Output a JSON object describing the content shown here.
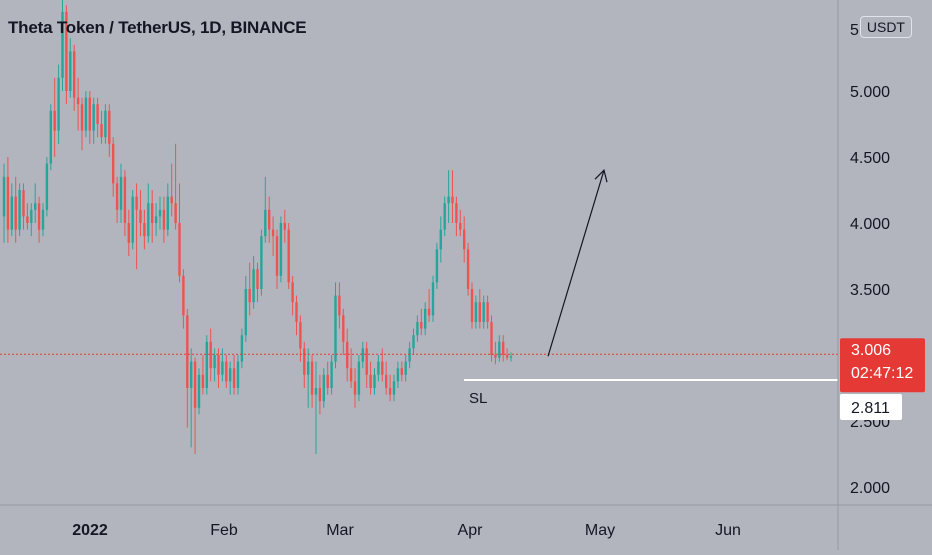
{
  "chart_title": "Theta Token / TetherUS, 1D, BINANCE",
  "currency": "USDT",
  "colors": {
    "background": "#b2b5be",
    "up": "#26a69a",
    "down": "#ef5350",
    "price_line": "#e53935",
    "sl_line": "#ffffff",
    "axis_text": "#131722"
  },
  "chart_data": {
    "type": "candlestick",
    "title": "Theta Token / TetherUS, 1D, BINANCE",
    "ylim": [
      1.8,
      5.45
    ],
    "y_ticks": [
      "5.000",
      "4.500",
      "4.000",
      "3.500",
      "3.000",
      "2.500",
      "2.000"
    ],
    "x_tick_labels": [
      "2022",
      "Feb",
      "Mar",
      "Apr",
      "May",
      "Jun"
    ],
    "current_price": "3.006",
    "countdown": "02:47:12",
    "sl_price": "2.811",
    "annotations": {
      "sl_label": "SL",
      "arrow": {
        "from_price": 2.99,
        "to_price": 4.4
      }
    },
    "legend_pos": "top-left",
    "grid": false,
    "candles": [
      {
        "o": 4.05,
        "h": 4.45,
        "c": 4.35,
        "l": 3.85
      },
      {
        "o": 4.35,
        "h": 4.5,
        "c": 3.95,
        "l": 3.85
      },
      {
        "o": 3.95,
        "h": 4.3,
        "c": 4.2,
        "l": 3.9
      },
      {
        "o": 4.2,
        "h": 4.35,
        "c": 3.95,
        "l": 3.85
      },
      {
        "o": 3.95,
        "h": 4.3,
        "c": 4.25,
        "l": 3.9
      },
      {
        "o": 4.25,
        "h": 4.3,
        "c": 4.05,
        "l": 3.95
      },
      {
        "o": 4.05,
        "h": 4.15,
        "c": 4.0,
        "l": 3.95
      },
      {
        "o": 4.0,
        "h": 4.15,
        "c": 4.1,
        "l": 3.9
      },
      {
        "o": 4.1,
        "h": 4.3,
        "c": 4.15,
        "l": 4.0
      },
      {
        "o": 4.15,
        "h": 4.2,
        "c": 3.95,
        "l": 3.85
      },
      {
        "o": 3.95,
        "h": 4.15,
        "c": 4.1,
        "l": 3.9
      },
      {
        "o": 4.1,
        "h": 4.5,
        "c": 4.45,
        "l": 4.05
      },
      {
        "o": 4.45,
        "h": 4.9,
        "c": 4.85,
        "l": 4.4
      },
      {
        "o": 4.85,
        "h": 5.1,
        "c": 4.7,
        "l": 4.5
      },
      {
        "o": 4.7,
        "h": 5.2,
        "c": 5.1,
        "l": 4.6
      },
      {
        "o": 5.1,
        "h": 5.7,
        "c": 5.6,
        "l": 5.0
      },
      {
        "o": 5.6,
        "h": 5.65,
        "c": 5.0,
        "l": 4.9
      },
      {
        "o": 5.0,
        "h": 5.4,
        "c": 5.3,
        "l": 4.95
      },
      {
        "o": 5.3,
        "h": 5.35,
        "c": 4.95,
        "l": 4.85
      },
      {
        "o": 4.95,
        "h": 5.1,
        "c": 4.9,
        "l": 4.7
      },
      {
        "o": 4.9,
        "h": 4.95,
        "c": 4.7,
        "l": 4.55
      },
      {
        "o": 4.7,
        "h": 5.0,
        "c": 4.95,
        "l": 4.65
      },
      {
        "o": 4.95,
        "h": 5.0,
        "c": 4.7,
        "l": 4.6
      },
      {
        "o": 4.7,
        "h": 4.95,
        "c": 4.9,
        "l": 4.6
      },
      {
        "o": 4.9,
        "h": 4.95,
        "c": 4.75,
        "l": 4.65
      },
      {
        "o": 4.75,
        "h": 4.85,
        "c": 4.65,
        "l": 4.6
      },
      {
        "o": 4.65,
        "h": 4.9,
        "c": 4.85,
        "l": 4.6
      },
      {
        "o": 4.85,
        "h": 4.9,
        "c": 4.6,
        "l": 4.5
      },
      {
        "o": 4.6,
        "h": 4.65,
        "c": 4.3,
        "l": 4.2
      },
      {
        "o": 4.3,
        "h": 4.35,
        "c": 4.1,
        "l": 4.0
      },
      {
        "o": 4.1,
        "h": 4.45,
        "c": 4.35,
        "l": 4.0
      },
      {
        "o": 4.35,
        "h": 4.4,
        "c": 4.0,
        "l": 3.9
      },
      {
        "o": 4.0,
        "h": 4.1,
        "c": 3.85,
        "l": 3.75
      },
      {
        "o": 3.85,
        "h": 4.25,
        "c": 4.2,
        "l": 3.8
      },
      {
        "o": 4.2,
        "h": 4.3,
        "c": 4.1,
        "l": 3.65
      },
      {
        "o": 4.1,
        "h": 4.25,
        "c": 4.0,
        "l": 3.9
      },
      {
        "o": 4.0,
        "h": 4.1,
        "c": 3.9,
        "l": 3.8
      },
      {
        "o": 3.9,
        "h": 4.3,
        "c": 4.15,
        "l": 3.85
      },
      {
        "o": 4.15,
        "h": 4.25,
        "c": 4.0,
        "l": 3.85
      },
      {
        "o": 4.0,
        "h": 4.15,
        "c": 4.05,
        "l": 3.9
      },
      {
        "o": 4.05,
        "h": 4.2,
        "c": 4.1,
        "l": 3.95
      },
      {
        "o": 4.1,
        "h": 4.2,
        "c": 3.95,
        "l": 3.85
      },
      {
        "o": 3.95,
        "h": 4.3,
        "c": 4.2,
        "l": 3.9
      },
      {
        "o": 4.2,
        "h": 4.45,
        "c": 4.15,
        "l": 4.05
      },
      {
        "o": 4.15,
        "h": 4.6,
        "c": 4.0,
        "l": 3.95
      },
      {
        "o": 4.0,
        "h": 4.3,
        "c": 3.6,
        "l": 3.55
      },
      {
        "o": 3.6,
        "h": 3.65,
        "c": 3.3,
        "l": 3.2
      },
      {
        "o": 3.3,
        "h": 3.35,
        "c": 2.75,
        "l": 2.45
      },
      {
        "o": 2.75,
        "h": 3.05,
        "c": 2.95,
        "l": 2.3
      },
      {
        "o": 2.95,
        "h": 2.98,
        "c": 2.6,
        "l": 2.25
      },
      {
        "o": 2.6,
        "h": 2.9,
        "c": 2.85,
        "l": 2.55
      },
      {
        "o": 2.85,
        "h": 3.0,
        "c": 2.75,
        "l": 2.7
      },
      {
        "o": 2.75,
        "h": 3.15,
        "c": 3.1,
        "l": 2.7
      },
      {
        "o": 3.1,
        "h": 3.2,
        "c": 2.9,
        "l": 2.8
      },
      {
        "o": 2.9,
        "h": 3.05,
        "c": 3.0,
        "l": 2.8
      },
      {
        "o": 3.0,
        "h": 3.05,
        "c": 2.85,
        "l": 2.75
      },
      {
        "o": 2.85,
        "h": 3.05,
        "c": 2.95,
        "l": 2.8
      },
      {
        "o": 2.95,
        "h": 3.0,
        "c": 2.8,
        "l": 2.75
      },
      {
        "o": 2.8,
        "h": 2.95,
        "c": 2.9,
        "l": 2.7
      },
      {
        "o": 2.9,
        "h": 3.0,
        "c": 2.75,
        "l": 2.7
      },
      {
        "o": 2.75,
        "h": 3.0,
        "c": 2.95,
        "l": 2.7
      },
      {
        "o": 2.95,
        "h": 3.2,
        "c": 3.15,
        "l": 2.9
      },
      {
        "o": 3.15,
        "h": 3.6,
        "c": 3.5,
        "l": 3.1
      },
      {
        "o": 3.5,
        "h": 3.7,
        "c": 3.4,
        "l": 3.3
      },
      {
        "o": 3.4,
        "h": 3.75,
        "c": 3.65,
        "l": 3.35
      },
      {
        "o": 3.65,
        "h": 3.7,
        "c": 3.5,
        "l": 3.4
      },
      {
        "o": 3.5,
        "h": 3.95,
        "c": 3.9,
        "l": 3.45
      },
      {
        "o": 3.9,
        "h": 4.35,
        "c": 4.1,
        "l": 3.85
      },
      {
        "o": 4.1,
        "h": 4.2,
        "c": 3.95,
        "l": 3.85
      },
      {
        "o": 3.95,
        "h": 4.05,
        "c": 3.9,
        "l": 3.75
      },
      {
        "o": 3.9,
        "h": 3.95,
        "c": 3.6,
        "l": 3.5
      },
      {
        "o": 3.6,
        "h": 4.05,
        "c": 4.0,
        "l": 3.55
      },
      {
        "o": 4.0,
        "h": 4.1,
        "c": 3.95,
        "l": 3.85
      },
      {
        "o": 3.95,
        "h": 4.0,
        "c": 3.55,
        "l": 3.5
      },
      {
        "o": 3.55,
        "h": 3.6,
        "c": 3.4,
        "l": 3.3
      },
      {
        "o": 3.4,
        "h": 3.45,
        "c": 3.25,
        "l": 3.15
      },
      {
        "o": 3.25,
        "h": 3.3,
        "c": 3.05,
        "l": 2.95
      },
      {
        "o": 3.05,
        "h": 3.1,
        "c": 2.85,
        "l": 2.75
      },
      {
        "o": 2.85,
        "h": 3.05,
        "c": 2.95,
        "l": 2.6
      },
      {
        "o": 2.95,
        "h": 3.0,
        "c": 2.7,
        "l": 2.6
      },
      {
        "o": 2.7,
        "h": 2.95,
        "c": 2.75,
        "l": 2.25
      },
      {
        "o": 2.75,
        "h": 2.85,
        "c": 2.65,
        "l": 2.55
      },
      {
        "o": 2.65,
        "h": 2.9,
        "c": 2.85,
        "l": 2.6
      },
      {
        "o": 2.85,
        "h": 2.95,
        "c": 2.75,
        "l": 2.7
      },
      {
        "o": 2.75,
        "h": 3.0,
        "c": 2.95,
        "l": 2.7
      },
      {
        "o": 2.95,
        "h": 3.55,
        "c": 3.45,
        "l": 2.9
      },
      {
        "o": 3.45,
        "h": 3.55,
        "c": 3.3,
        "l": 3.2
      },
      {
        "o": 3.3,
        "h": 3.35,
        "c": 3.1,
        "l": 3.0
      },
      {
        "o": 3.1,
        "h": 3.2,
        "c": 2.9,
        "l": 2.8
      },
      {
        "o": 2.9,
        "h": 3.05,
        "c": 2.8,
        "l": 2.75
      },
      {
        "o": 2.8,
        "h": 2.9,
        "c": 2.7,
        "l": 2.6
      },
      {
        "o": 2.7,
        "h": 3.0,
        "c": 2.95,
        "l": 2.65
      },
      {
        "o": 2.95,
        "h": 3.1,
        "c": 3.05,
        "l": 2.9
      },
      {
        "o": 3.05,
        "h": 3.1,
        "c": 2.85,
        "l": 2.75
      },
      {
        "o": 2.85,
        "h": 2.95,
        "c": 2.75,
        "l": 2.7
      },
      {
        "o": 2.75,
        "h": 2.9,
        "c": 2.85,
        "l": 2.7
      },
      {
        "o": 2.85,
        "h": 3.0,
        "c": 2.95,
        "l": 2.8
      },
      {
        "o": 2.95,
        "h": 3.05,
        "c": 2.85,
        "l": 2.8
      },
      {
        "o": 2.85,
        "h": 2.95,
        "c": 2.75,
        "l": 2.7
      },
      {
        "o": 2.75,
        "h": 2.85,
        "c": 2.7,
        "l": 2.65
      },
      {
        "o": 2.7,
        "h": 2.85,
        "c": 2.8,
        "l": 2.65
      },
      {
        "o": 2.8,
        "h": 2.95,
        "c": 2.9,
        "l": 2.75
      },
      {
        "o": 2.9,
        "h": 2.95,
        "c": 2.85,
        "l": 2.8
      },
      {
        "o": 2.85,
        "h": 3.0,
        "c": 2.95,
        "l": 2.8
      },
      {
        "o": 2.95,
        "h": 3.1,
        "c": 3.05,
        "l": 2.9
      },
      {
        "o": 3.05,
        "h": 3.2,
        "c": 3.15,
        "l": 3.0
      },
      {
        "o": 3.15,
        "h": 3.3,
        "c": 3.25,
        "l": 3.1
      },
      {
        "o": 3.25,
        "h": 3.35,
        "c": 3.2,
        "l": 3.15
      },
      {
        "o": 3.2,
        "h": 3.4,
        "c": 3.35,
        "l": 3.15
      },
      {
        "o": 3.35,
        "h": 3.5,
        "c": 3.3,
        "l": 3.25
      },
      {
        "o": 3.3,
        "h": 3.6,
        "c": 3.55,
        "l": 3.25
      },
      {
        "o": 3.55,
        "h": 3.85,
        "c": 3.8,
        "l": 3.5
      },
      {
        "o": 3.8,
        "h": 4.05,
        "c": 3.95,
        "l": 3.7
      },
      {
        "o": 3.95,
        "h": 4.2,
        "c": 4.15,
        "l": 3.9
      },
      {
        "o": 4.15,
        "h": 4.4,
        "c": 4.2,
        "l": 4.0
      },
      {
        "o": 4.2,
        "h": 4.4,
        "c": 4.15,
        "l": 4.0
      },
      {
        "o": 4.15,
        "h": 4.2,
        "c": 4.0,
        "l": 3.9
      },
      {
        "o": 4.0,
        "h": 4.1,
        "c": 3.95,
        "l": 3.9
      },
      {
        "o": 3.95,
        "h": 4.05,
        "c": 3.8,
        "l": 3.7
      },
      {
        "o": 3.8,
        "h": 3.85,
        "c": 3.5,
        "l": 3.45
      },
      {
        "o": 3.5,
        "h": 3.55,
        "c": 3.25,
        "l": 3.2
      },
      {
        "o": 3.25,
        "h": 3.45,
        "c": 3.4,
        "l": 3.2
      },
      {
        "o": 3.4,
        "h": 3.5,
        "c": 3.25,
        "l": 3.2
      },
      {
        "o": 3.25,
        "h": 3.45,
        "c": 3.4,
        "l": 3.2
      },
      {
        "o": 3.4,
        "h": 3.45,
        "c": 3.25,
        "l": 3.2
      },
      {
        "o": 3.25,
        "h": 3.3,
        "c": 3.0,
        "l": 2.95
      },
      {
        "o": 3.0,
        "h": 3.1,
        "c": 2.98,
        "l": 2.93
      },
      {
        "o": 2.98,
        "h": 3.15,
        "c": 3.1,
        "l": 2.95
      },
      {
        "o": 3.1,
        "h": 3.15,
        "c": 3.0,
        "l": 2.95
      },
      {
        "o": 3.0,
        "h": 3.05,
        "c": 2.98,
        "l": 2.96
      },
      {
        "o": 2.98,
        "h": 3.02,
        "c": 2.99,
        "l": 2.95
      }
    ]
  }
}
